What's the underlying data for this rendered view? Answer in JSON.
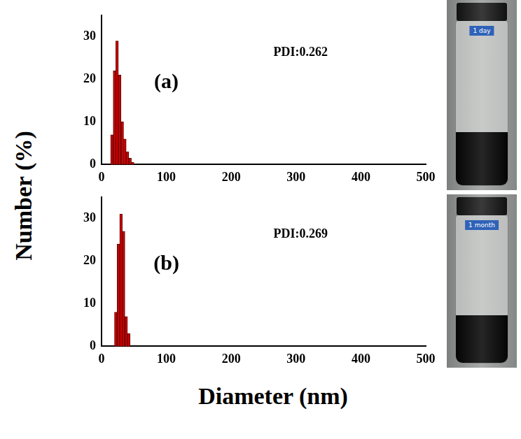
{
  "chart_data": [
    {
      "type": "histogram",
      "title": "(a)",
      "annotations": [
        "PDI:0.262"
      ],
      "bins": [
        14,
        18,
        22,
        26,
        30,
        34,
        38,
        42,
        46,
        50
      ],
      "values": [
        7,
        22,
        29,
        21,
        10,
        6,
        3,
        1.5,
        0.5
      ],
      "color": "#cc0000",
      "xlim": [
        0,
        500
      ],
      "xticks": [
        0,
        100,
        200,
        300,
        400,
        500
      ],
      "ylim": [
        0,
        35
      ],
      "yticks": [
        0,
        10,
        20,
        30
      ],
      "grid": false
    },
    {
      "type": "histogram",
      "title": "(b)",
      "annotations": [
        "PDI:0.269"
      ],
      "bins": [
        20,
        24,
        28,
        32,
        36,
        40,
        44
      ],
      "values": [
        8,
        24,
        31,
        27,
        7,
        3
      ],
      "color": "#cc0000",
      "xlim": [
        0,
        500
      ],
      "xticks": [
        0,
        100,
        200,
        300,
        400,
        500
      ],
      "ylim": [
        0,
        35
      ],
      "yticks": [
        0,
        10,
        20,
        30
      ],
      "grid": false
    }
  ],
  "xlabel": "Diameter (nm)",
  "ylabel": "Number (%)",
  "photos": [
    {
      "label": "1 day"
    },
    {
      "label": "1 month"
    }
  ]
}
